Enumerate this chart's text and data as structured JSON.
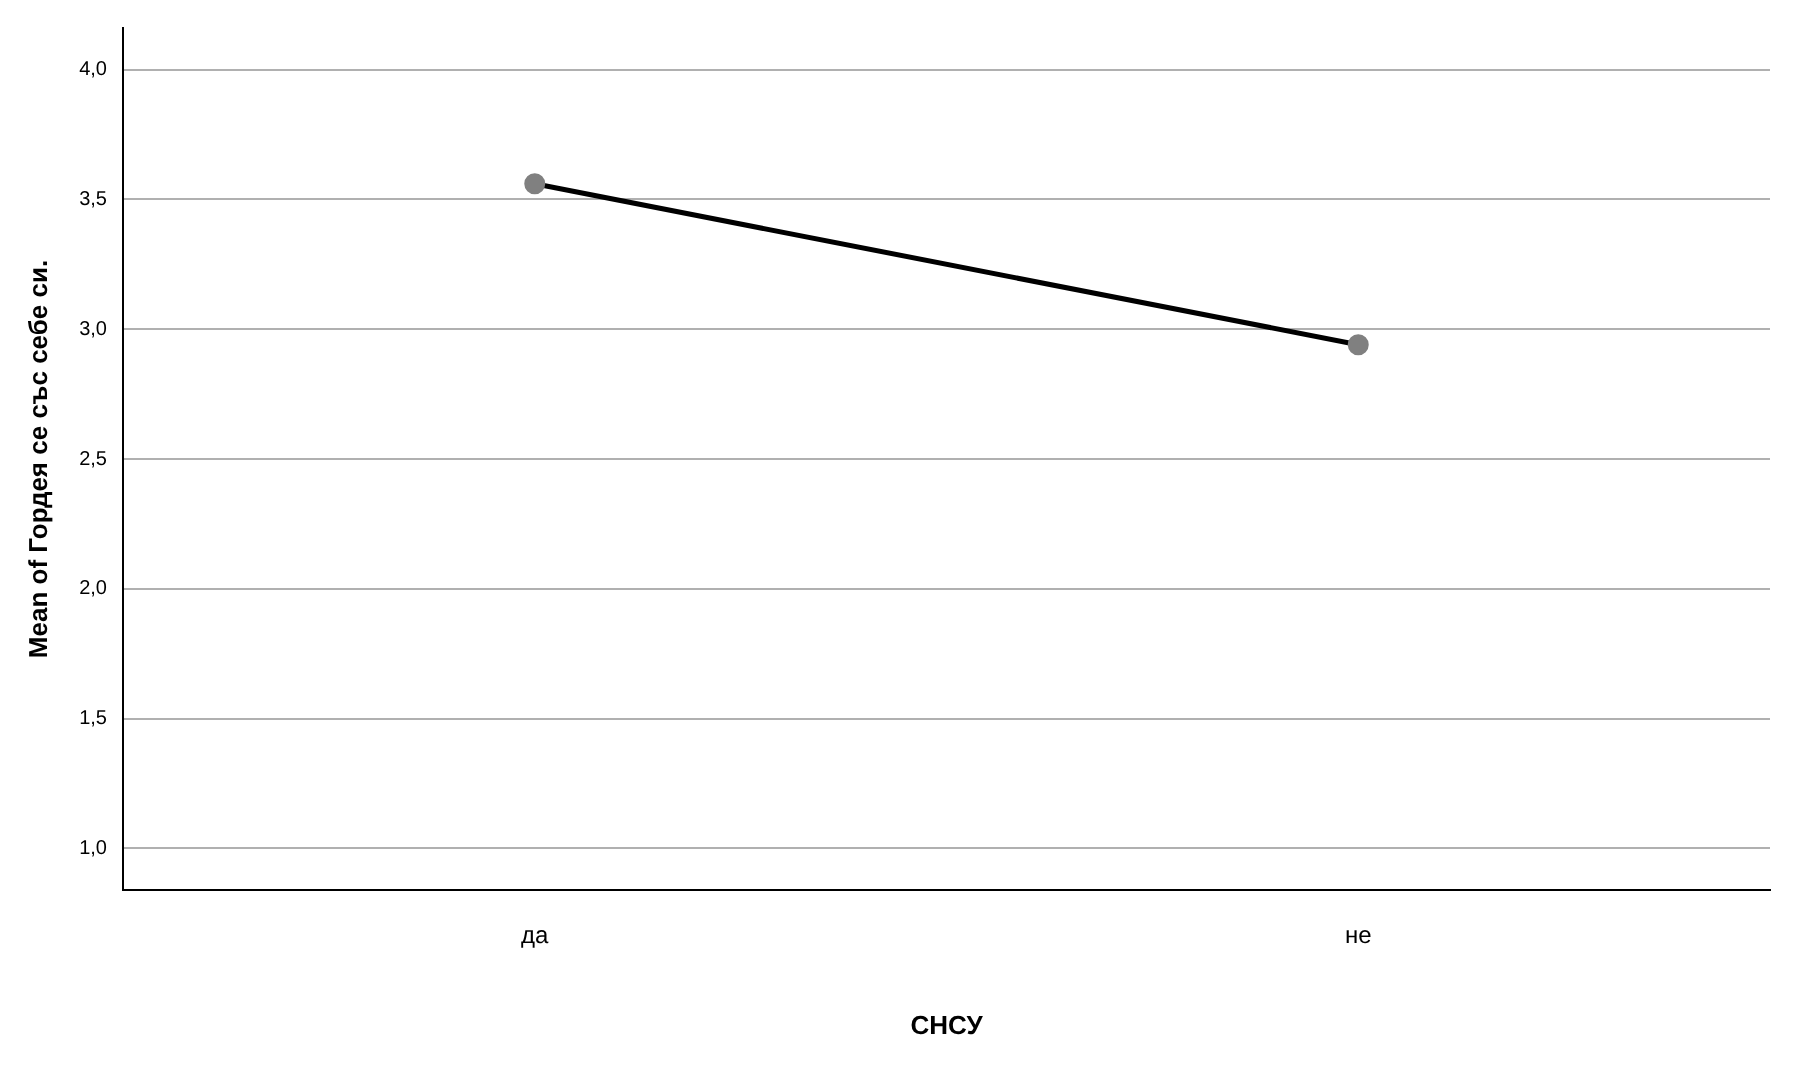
{
  "chart_data": {
    "type": "line",
    "xlabel": "СНСУ",
    "ylabel": "Mean of Гордея се със себе си.",
    "categories": [
      "да",
      "не"
    ],
    "series": [
      {
        "color": "#000000",
        "values": [
          3.56,
          2.94
        ]
      }
    ],
    "ylim": [
      0.84,
      4.16
    ],
    "yticks": [
      {
        "value": 1,
        "label": "1,0"
      },
      {
        "value": 1.5,
        "label": "1,5"
      },
      {
        "value": 2,
        "label": "2,0"
      },
      {
        "value": 2.5,
        "label": "2,5"
      },
      {
        "value": 3,
        "label": "3,0"
      },
      {
        "value": 3.5,
        "label": "3,5"
      },
      {
        "value": 4,
        "label": "4,0"
      }
    ],
    "grid": "y",
    "legend": false,
    "marker": "circle",
    "line_style": "solid"
  }
}
